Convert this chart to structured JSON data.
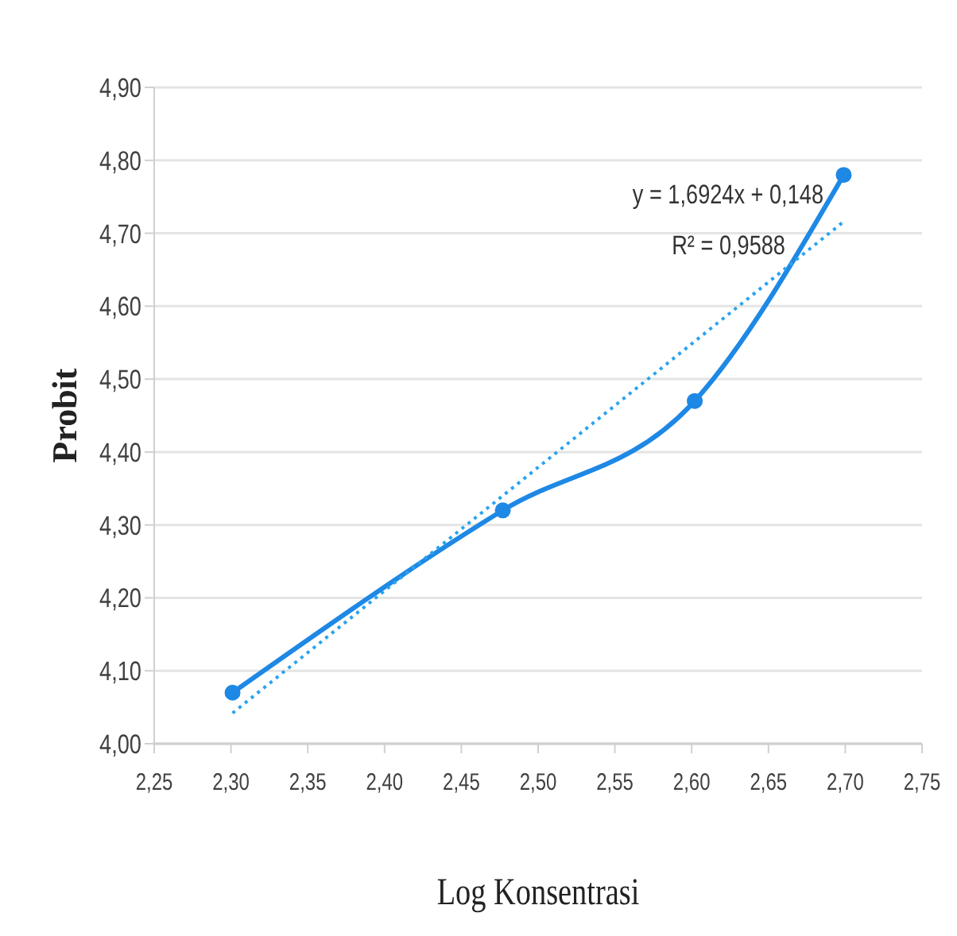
{
  "chart_data": {
    "type": "line",
    "xlabel": "Log Konsentrasi",
    "ylabel": "Probit",
    "xlim": [
      2.25,
      2.75
    ],
    "xticks": [
      {
        "value": 2.25,
        "label": "2,25"
      },
      {
        "value": 2.3,
        "label": "2,30"
      },
      {
        "value": 2.35,
        "label": "2,35"
      },
      {
        "value": 2.4,
        "label": "2,40"
      },
      {
        "value": 2.45,
        "label": "2,45"
      },
      {
        "value": 2.5,
        "label": "2,50"
      },
      {
        "value": 2.55,
        "label": "2,55"
      },
      {
        "value": 2.6,
        "label": "2,60"
      },
      {
        "value": 2.65,
        "label": "2,65"
      },
      {
        "value": 2.7,
        "label": "2,70"
      },
      {
        "value": 2.75,
        "label": "2,75"
      }
    ],
    "ylim": [
      4.0,
      4.9
    ],
    "yticks": [
      {
        "value": 4.0,
        "label": "4,00"
      },
      {
        "value": 4.1,
        "label": "4,10"
      },
      {
        "value": 4.2,
        "label": "4,20"
      },
      {
        "value": 4.3,
        "label": "4,30"
      },
      {
        "value": 4.4,
        "label": "4,40"
      },
      {
        "value": 4.5,
        "label": "4,50"
      },
      {
        "value": 4.6,
        "label": "4,60"
      },
      {
        "value": 4.7,
        "label": "4,70"
      },
      {
        "value": 4.8,
        "label": "4,80"
      },
      {
        "value": 4.9,
        "label": "4,90"
      }
    ],
    "grid": "y",
    "series": [
      {
        "color": "#1e88e5",
        "x": [
          2.301,
          2.477,
          2.602,
          2.699
        ],
        "values": [
          4.07,
          4.32,
          4.47,
          4.78
        ],
        "marker": "circle",
        "line_style": "solid"
      },
      {
        "type": "line",
        "color": "#29a3f0",
        "x": [
          2.301,
          2.699
        ],
        "values": [
          4.042,
          4.716
        ],
        "marker": "none",
        "line_style": "dotted"
      }
    ],
    "annotations": [
      "y = 1,6924x + 0,148",
      "R² = 0,9588"
    ]
  }
}
